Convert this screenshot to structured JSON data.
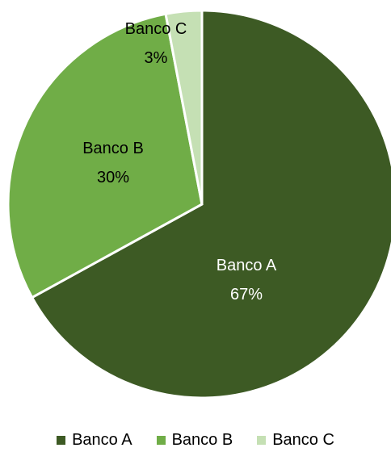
{
  "chart_data": {
    "type": "pie",
    "title": "",
    "slices": [
      {
        "label": "Banco A",
        "value": 67,
        "display": "67%",
        "color": "#3D5A24"
      },
      {
        "label": "Banco B",
        "value": 30,
        "display": "30%",
        "color": "#70AD47"
      },
      {
        "label": "Banco C",
        "value": 3,
        "display": "3%",
        "color": "#C5E0B4"
      }
    ],
    "start_angle": "12 o'clock",
    "direction": "clockwise",
    "legend_position": "bottom"
  }
}
